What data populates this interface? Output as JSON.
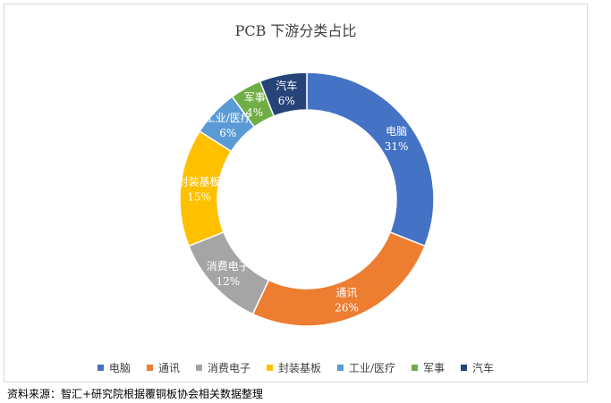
{
  "chart_data": {
    "type": "pie",
    "subtype": "donut",
    "title": "PCB 下游分类占比",
    "categories": [
      "电脑",
      "通讯",
      "消费电子",
      "封装基板",
      "工业/医疗",
      "军事",
      "汽车"
    ],
    "values": [
      31,
      26,
      12,
      15,
      6,
      4,
      6
    ],
    "value_labels": [
      "31%",
      "26%",
      "12%",
      "15%",
      "6%",
      "4%",
      "6%"
    ],
    "colors": [
      "#4472C4",
      "#ED7D31",
      "#A5A5A5",
      "#FFC000",
      "#5B9BD5",
      "#70AD47",
      "#264478"
    ],
    "legend_position": "bottom"
  },
  "source_note": "资料来源：智汇+研究院根据覆铜板协会相关数据整理"
}
